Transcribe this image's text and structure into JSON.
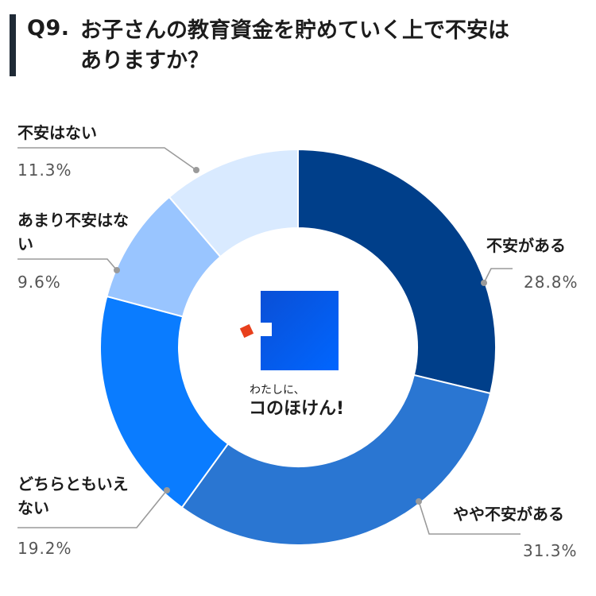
{
  "header": {
    "question_number": "Q9.",
    "question_text": "お子さんの教育資金を貯めていく上で不安はありますか？"
  },
  "logo": {
    "line1": "わたしに、",
    "line2": "コのほけん!"
  },
  "chart_data": {
    "type": "pie",
    "donut": true,
    "categories": [
      "不安がある",
      "やや不安がある",
      "どちらともいえない",
      "あまり不安はない",
      "不安はない"
    ],
    "values": [
      28.8,
      31.3,
      19.2,
      9.6,
      11.3
    ],
    "value_labels": [
      "28.8%",
      "31.3%",
      "19.2%",
      "9.6%",
      "11.3%"
    ],
    "colors": [
      "#003f8a",
      "#2a76d2",
      "#0a7cff",
      "#99c5ff",
      "#d9eaff"
    ],
    "start": "12 o'clock",
    "direction": "clockwise"
  }
}
